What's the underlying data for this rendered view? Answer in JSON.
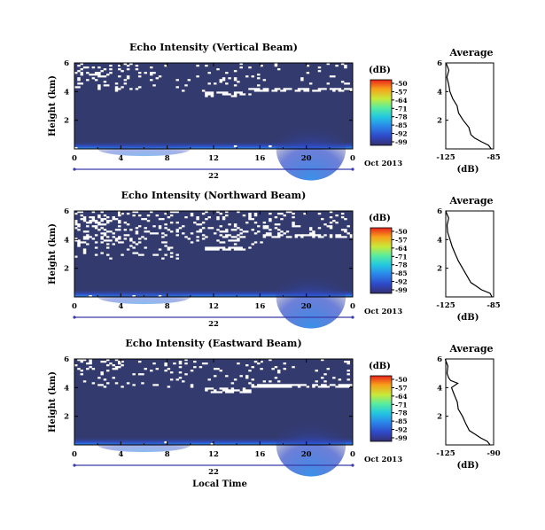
{
  "chart_data": [
    {
      "type": "heatmap",
      "title": "Echo Intensity (Vertical Beam)",
      "ylabel": "Height (km)",
      "x_ticks": [
        "0",
        "4",
        "8",
        "12",
        "16",
        "20",
        "0"
      ],
      "xlim": [
        0,
        24
      ],
      "y_ticks": [
        "6",
        "4",
        "2"
      ],
      "ylim": [
        0,
        6
      ],
      "date_center": "22",
      "date_right": "Oct 2013",
      "colorbar": {
        "unit": "(dB)",
        "ticks": [
          "-50",
          "-57",
          "-64",
          "-71",
          "-78",
          "-85",
          "-92",
          "-99"
        ]
      },
      "white_band_km": 3.75,
      "avg_profile": {
        "title": "Average",
        "xlabel": "(dB)",
        "x_ticks": [
          "-125",
          "-85"
        ],
        "xlim": [
          -125,
          -85
        ],
        "y_ticks": [
          "6",
          "4",
          "2"
        ],
        "ylim": [
          0,
          6
        ],
        "height_km": [
          0.0,
          0.25,
          0.5,
          0.75,
          1.0,
          1.5,
          2.0,
          2.5,
          3.0,
          3.5,
          4.0,
          4.5,
          5.0,
          5.5,
          6.0
        ],
        "db": [
          -87,
          -89,
          -95,
          -101,
          -104,
          -106,
          -111,
          -114,
          -116,
          -119,
          -121,
          -122,
          -124,
          -123,
          -125
        ]
      }
    },
    {
      "type": "heatmap",
      "title": "Echo Intensity (Northward Beam)",
      "ylabel": "Height (km)",
      "x_ticks": [
        "0",
        "4",
        "8",
        "12",
        "16",
        "20",
        "0"
      ],
      "xlim": [
        0,
        24
      ],
      "y_ticks": [
        "6",
        "4",
        "2"
      ],
      "ylim": [
        0,
        6
      ],
      "date_center": "22",
      "date_right": "Oct 2013",
      "colorbar": {
        "unit": "(dB)",
        "ticks": [
          "-50",
          "-57",
          "-64",
          "-71",
          "-78",
          "-85",
          "-92",
          "-99"
        ]
      },
      "white_band_km": 3.3,
      "avg_profile": {
        "title": "Average",
        "xlabel": "(dB)",
        "x_ticks": [
          "-125",
          "-85"
        ],
        "xlim": [
          -125,
          -85
        ],
        "y_ticks": [
          "6",
          "4",
          "2"
        ],
        "ylim": [
          0,
          6
        ],
        "height_km": [
          0.0,
          0.25,
          0.5,
          0.75,
          1.0,
          1.5,
          2.0,
          2.5,
          3.0,
          3.5,
          4.0,
          4.5,
          5.0,
          5.5,
          6.0
        ],
        "db": [
          -86,
          -88,
          -95,
          -100,
          -104,
          -107,
          -111,
          -114,
          -117,
          -120,
          -121,
          -123,
          -124,
          -122,
          -125
        ]
      }
    },
    {
      "type": "heatmap",
      "title": "Echo Intensity (Eastward Beam)",
      "ylabel": "Height (km)",
      "x_ticks": [
        "0",
        "4",
        "8",
        "12",
        "16",
        "20",
        "0"
      ],
      "xlim": [
        0,
        24
      ],
      "y_ticks": [
        "6",
        "4",
        "2"
      ],
      "ylim": [
        0,
        6
      ],
      "date_center": "22",
      "date_right": "Oct 2013",
      "xlabel": "Local Time",
      "colorbar": {
        "unit": "(dB)",
        "ticks": [
          "-50",
          "-57",
          "-64",
          "-71",
          "-78",
          "-85",
          "-92",
          "-99"
        ]
      },
      "white_band_km": 3.75,
      "avg_profile": {
        "title": "Average",
        "xlabel": "(dB)",
        "x_ticks": [
          "-125",
          "-90"
        ],
        "xlim": [
          -125,
          -90
        ],
        "y_ticks": [
          "6",
          "4",
          "2"
        ],
        "ylim": [
          0,
          6
        ],
        "height_km": [
          0.0,
          0.25,
          0.5,
          0.75,
          1.0,
          1.5,
          2.0,
          2.5,
          3.0,
          3.5,
          4.0,
          4.3,
          4.5,
          4.7,
          5.0,
          5.5,
          6.0
        ],
        "db": [
          -92,
          -95,
          -100,
          -104,
          -108,
          -110,
          -113,
          -116,
          -117,
          -119,
          -121,
          -116,
          -121,
          -123,
          -124,
          -123,
          -125
        ]
      }
    }
  ],
  "colors": {
    "background": "#333a6e",
    "scale": [
      "#33306e",
      "#2f49c8",
      "#2b86ea",
      "#23c6e0",
      "#55eca2",
      "#c7ea3a",
      "#f7a11a",
      "#e8231c"
    ],
    "axis": "#000000",
    "date_bar": "#3a3aa8"
  }
}
